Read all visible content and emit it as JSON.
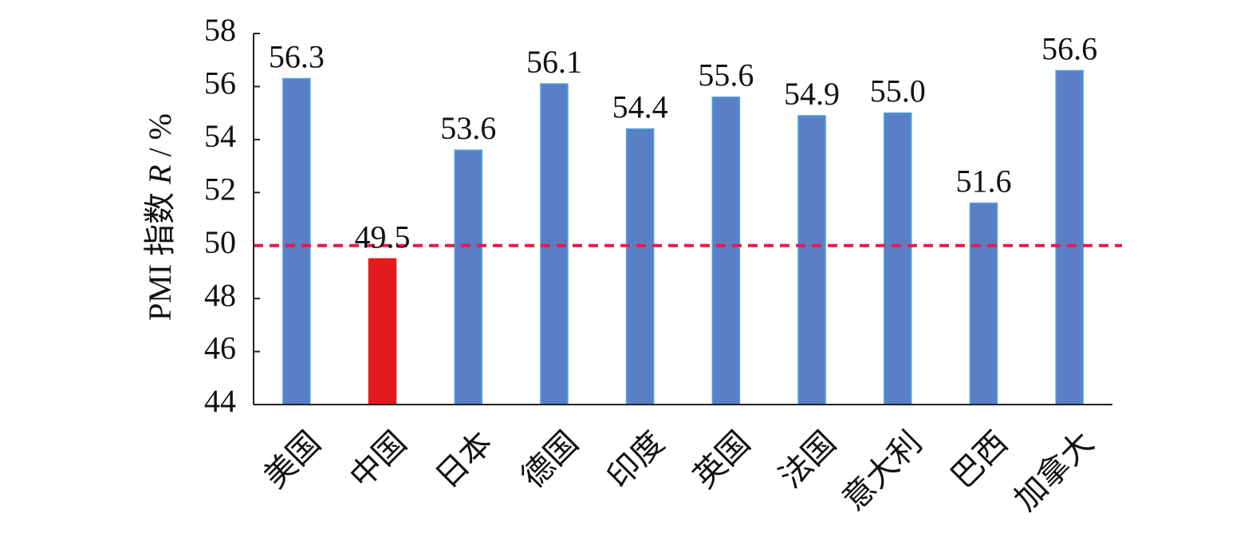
{
  "chart_data": {
    "type": "bar",
    "categories": [
      "美国",
      "中国",
      "日本",
      "德国",
      "印度",
      "英国",
      "法国",
      "意大利",
      "巴西",
      "加拿大"
    ],
    "values": [
      56.3,
      49.5,
      53.6,
      56.1,
      54.4,
      55.6,
      54.9,
      55.0,
      51.6,
      56.6
    ],
    "value_labels": [
      "56.3",
      "49.5",
      "53.6",
      "56.1",
      "54.4",
      "55.6",
      "54.9",
      "55.0",
      "51.6",
      "56.6"
    ],
    "ylabel": {
      "prefix": "PMI 指数 ",
      "variable": "R",
      "suffix": " / %"
    },
    "ylim": [
      44,
      58
    ],
    "yticks": [
      44,
      46,
      48,
      50,
      52,
      54,
      56,
      58
    ],
    "reference_line": {
      "value": 50,
      "style": "dashed",
      "color": "#e8194a"
    },
    "colors": {
      "bar": "#5b7fc7",
      "bar_edge": "#4aa3df",
      "highlight": "#e31a1c",
      "highlight_category": "中国"
    },
    "grid": false,
    "legend": "none"
  }
}
